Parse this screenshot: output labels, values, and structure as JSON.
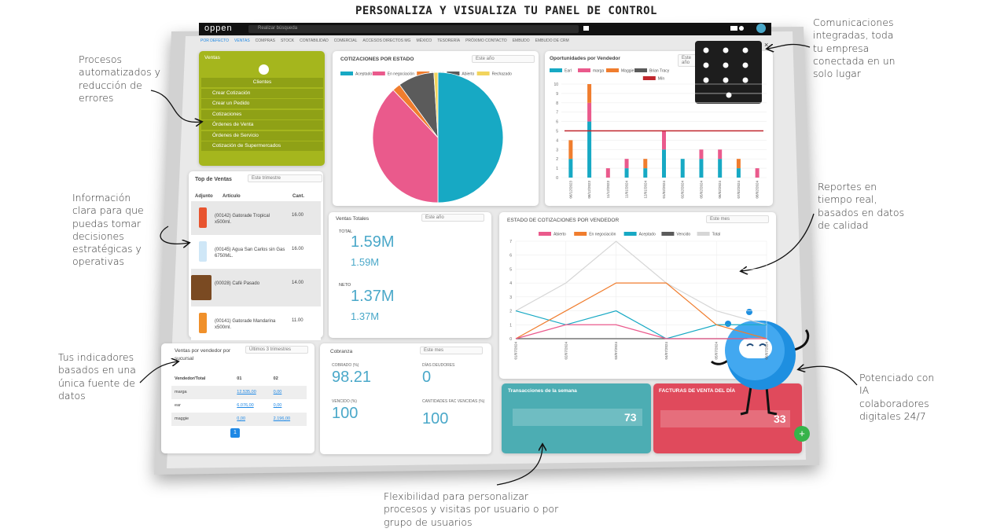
{
  "header": {
    "title": "PERSONALIZA Y VISUALIZA TU PANEL DE CONTROL"
  },
  "annotations": [
    "Procesos automatizados y reducción de errores",
    "Información clara para que puedas tomar decisiones estratégicas y operativas",
    "Tus indicadores basados en una única fuente de datos",
    "Flexibilidad para personalizar procesos y visitas por usuario o por grupo de usuarios",
    "Potenciado con IA colaboradores digitales 24/7",
    "Reportes en tiempo real, basados en datos de calidad",
    "Comunicaciones integradas, toda tu empresa conectada en un solo lugar"
  ],
  "app": {
    "logo": "oppen",
    "search_placeholder": "Realizar búsqueda",
    "nav": [
      "POR DEFECTO",
      "VENTAS",
      "COMPRAS",
      "STOCK",
      "CONTABILIDAD",
      "COMERCIAL",
      "ACCESOS DIRECTOS MG",
      "MÉXICO",
      "TESORERÍA",
      "PRÓXIMO CONTACTO",
      "EMBUDO",
      "EMBUDO DE CRM"
    ],
    "ventas_menu": {
      "title": "Ventas",
      "items": [
        "Clientes",
        "Crear Cotización",
        "Crear un Pedido",
        "Cotizaciones",
        "Órdenes de Venta",
        "Órdenes de Servicio",
        "Cotización de Supermercados"
      ]
    },
    "cotizaciones_estado": {
      "title": "COTIZACIONES POR ESTADO",
      "filter": "Este año",
      "chart": {
        "type": "pie",
        "categories": [
          "Aceptado",
          "En negociación",
          "Vencido",
          "Abierto",
          "Rechazado"
        ],
        "values": [
          50,
          38,
          2,
          9,
          1
        ],
        "colors": [
          "#17a9c4",
          "#ea5a8c",
          "#f07d2e",
          "#5b5b5b",
          "#f2d45c"
        ]
      }
    },
    "oportunidades": {
      "title": "Oportunidades por Vendedor",
      "filter": "Este año",
      "chart": {
        "type": "bar",
        "categories": [
          "06/12/2023",
          "08/12/2023",
          "11/12/2023",
          "11/01/2024",
          "12/01/2024",
          "01/02/2024",
          "02/02/2024",
          "05/02/2024",
          "06/02/2024",
          "07/02/2024",
          "08/02/2024"
        ],
        "series": [
          {
            "name": "Earl",
            "color": "#17a9c4",
            "values": [
              2,
              6,
              0,
              1,
              1,
              3,
              2,
              2,
              2,
              1,
              0
            ]
          },
          {
            "name": "marga",
            "color": "#ea5a8c",
            "values": [
              0,
              2,
              1,
              1,
              0,
              2,
              0,
              1,
              1,
              0,
              1
            ]
          },
          {
            "name": "Maggie",
            "color": "#f07d2e",
            "values": [
              2,
              2,
              0,
              0,
              1,
              0,
              0,
              0,
              0,
              1,
              0
            ]
          },
          {
            "name": "Brian Tracy",
            "color": "#5b5b5b",
            "values": [
              0,
              0,
              0,
              0,
              0,
              0,
              0,
              0,
              0,
              0,
              0
            ]
          }
        ],
        "reference_line": {
          "name": "Mín",
          "color": "#c0272d",
          "value": 5
        },
        "ylim": [
          0,
          10
        ],
        "yticks": [
          0,
          1,
          2,
          3,
          4,
          5,
          6,
          7,
          8,
          9,
          10
        ]
      }
    },
    "top_ventas": {
      "title": "Top de Ventas",
      "filter": "Este trimestre",
      "headers": [
        "Adjunto",
        "Artículo",
        "Cant."
      ],
      "rows": [
        [
          "(00142) Gatorade Tropical x500ml.",
          "16.00"
        ],
        [
          "(00145) Agua San Carlos sin Gas 6750ML.",
          "16.00"
        ],
        [
          "(00028) Café Pasado",
          "14.00"
        ],
        [
          "(00141) Gatorade Mandarina x500ml.",
          "11.00"
        ]
      ]
    },
    "ventas_totales": {
      "title": "Ventas Totales",
      "filter": "Este año",
      "total_label": "TOTAL",
      "total": "1.59M",
      "total_sub": "1.59M",
      "neto_label": "NETO",
      "neto": "1.37M",
      "neto_sub": "1.37M"
    },
    "estado_cotizaciones": {
      "title": "ESTADO DE COTIZACIONES POR VENDEDOR",
      "filter": "Este mes",
      "chart": {
        "type": "line",
        "categories": [
          "01/07/2024",
          "02/07/2024",
          "03/07/2024",
          "04/07/2024",
          "05/07/2024",
          "06/07/2024"
        ],
        "series": [
          {
            "name": "Abierto",
            "color": "#ea5a8c",
            "values": [
              0,
              1,
              1,
              0,
              0,
              0
            ]
          },
          {
            "name": "En negociación",
            "color": "#f07d2e",
            "values": [
              0,
              2,
              4,
              4,
              1,
              0
            ]
          },
          {
            "name": "Aceptado",
            "color": "#17a9c4",
            "values": [
              2,
              1,
              2,
              0,
              1,
              1
            ]
          },
          {
            "name": "Vencido",
            "color": "#5b5b5b",
            "values": [
              0,
              0,
              0,
              0,
              0,
              0
            ]
          },
          {
            "name": "Total",
            "color": "#d6d6d6",
            "values": [
              2,
              4,
              7,
              4,
              2,
              1
            ]
          }
        ],
        "ylim": [
          0,
          7
        ],
        "yticks": [
          0,
          1,
          2,
          3,
          4,
          5,
          6,
          7
        ]
      }
    },
    "ventas_vendedor": {
      "title": "Ventas por vendedor por sucursal",
      "filter": "Últimos 3 trimestres",
      "headers": [
        "Vendedor/Total",
        "01",
        "02"
      ],
      "rows": [
        [
          "marga",
          "12.535,00",
          "0,00"
        ],
        [
          "ear",
          "6.076,00",
          "0,00"
        ],
        [
          "maggie",
          "0,00",
          "2.196,00"
        ]
      ],
      "page": "1"
    },
    "cobranza": {
      "title": "Cobranza",
      "filter": "Este mes",
      "kpis": [
        {
          "label": "COBRADO (%)",
          "value": "98.21"
        },
        {
          "label": "DÍAS DEUDORES",
          "value": "0"
        },
        {
          "label": "VENCIDO (%)",
          "value": "100"
        },
        {
          "label": "CANTIDADES FAC VENCIDAS (%)",
          "value": "100"
        }
      ]
    },
    "transacciones": {
      "title": "Transacciones de la semana",
      "value": "73"
    },
    "facturas": {
      "title": "FACTURAS DE VENTA DEL DÍA",
      "value": "33"
    }
  }
}
